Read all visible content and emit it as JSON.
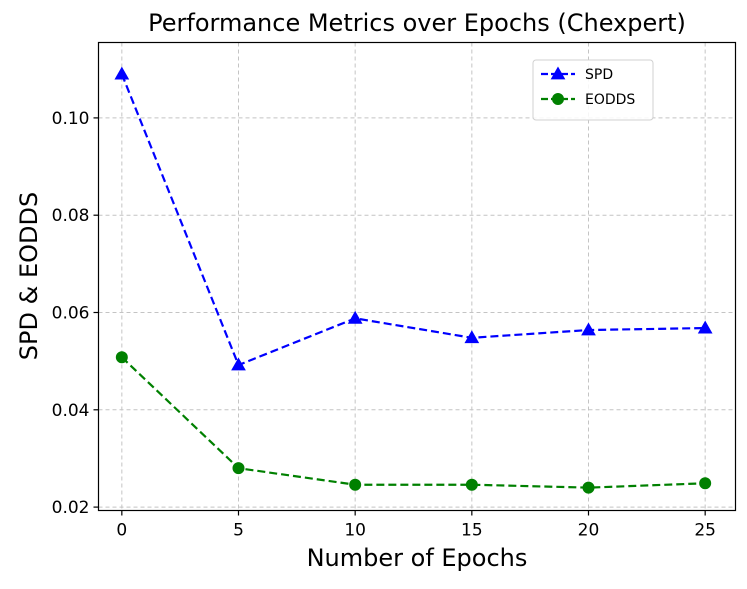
{
  "chart_data": {
    "type": "line",
    "title": "Performance Metrics over Epochs (Chexpert)",
    "xlabel": "Number of Epochs",
    "ylabel": "SPD & EODDS",
    "x": [
      0,
      5,
      10,
      15,
      20,
      25
    ],
    "xlim": [
      -1,
      26.3
    ],
    "ylim": [
      0.0193,
      0.1155
    ],
    "xticks": [
      0,
      5,
      10,
      15,
      20,
      25
    ],
    "yticks": [
      0.02,
      0.04,
      0.06,
      0.08,
      0.1
    ],
    "ytick_labels": [
      "0.02",
      "0.04",
      "0.06",
      "0.08",
      "0.10"
    ],
    "grid": true,
    "legend_position": "top-right",
    "series": [
      {
        "name": "SPD",
        "values": [
          0.109,
          0.0492,
          0.0588,
          0.0548,
          0.0564,
          0.0568
        ],
        "color": "#0000ff",
        "marker": "triangle",
        "line_style": "dashed"
      },
      {
        "name": "EODDS",
        "values": [
          0.0508,
          0.028,
          0.0246,
          0.0246,
          0.024,
          0.0249
        ],
        "color": "#008000",
        "marker": "circle",
        "line_style": "dashed"
      }
    ]
  }
}
